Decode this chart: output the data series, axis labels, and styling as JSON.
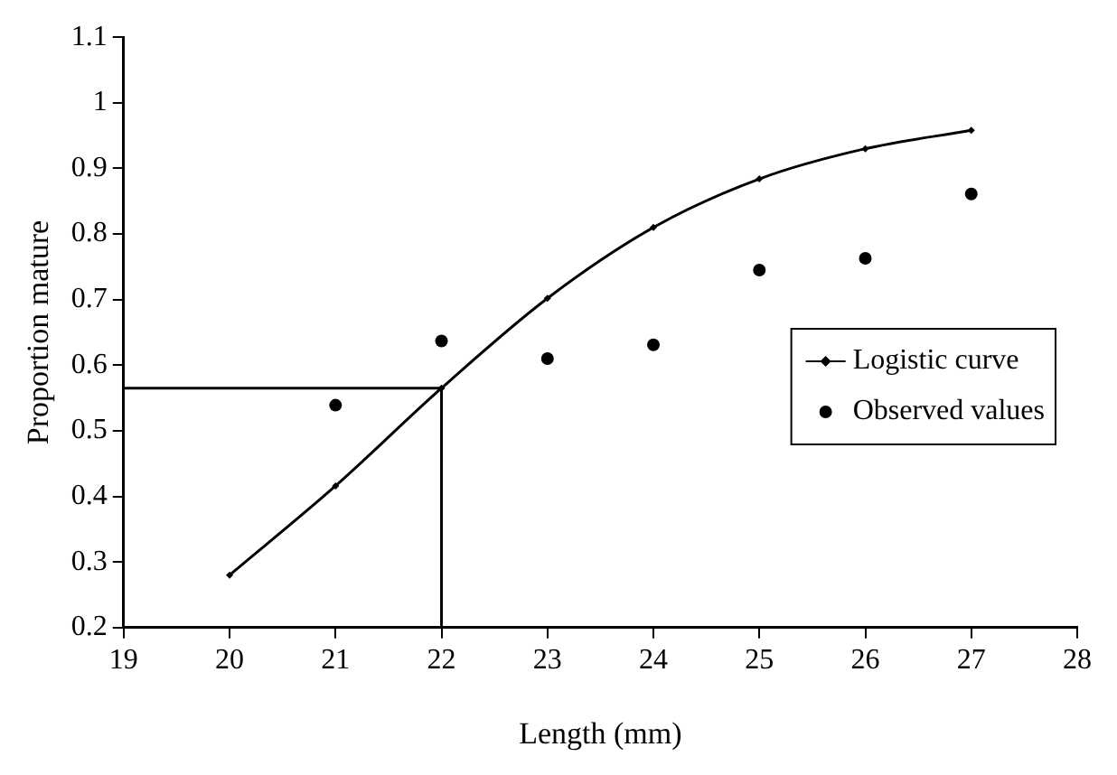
{
  "chart_data": {
    "type": "line",
    "xlabel": "Length (mm)",
    "ylabel": "Proportion mature",
    "xlim": [
      19,
      28
    ],
    "xticks": [
      19,
      20,
      21,
      22,
      23,
      24,
      25,
      26,
      27,
      28
    ],
    "ylim": [
      0.2,
      1.1
    ],
    "yticks": [
      0.2,
      0.3,
      0.4,
      0.5,
      0.6,
      0.7,
      0.8,
      0.9,
      1,
      1.1
    ],
    "grid": false,
    "legend": "right",
    "series": [
      {
        "name": "Logistic curve",
        "color": "#000000",
        "marker": "diamond",
        "x": [
          20,
          21,
          22,
          23,
          24,
          25,
          26,
          27
        ],
        "values": [
          0.28,
          0.416,
          0.565,
          0.702,
          0.81,
          0.884,
          0.93,
          0.958
        ]
      },
      {
        "name": "Observed values",
        "type": "scatter",
        "color": "#000000",
        "marker": "circle",
        "x": [
          21,
          22,
          23,
          24,
          25,
          26,
          27
        ],
        "values": [
          0.539,
          0.637,
          0.61,
          0.631,
          0.745,
          0.763,
          0.861
        ]
      },
      {
        "color": "#000000",
        "marker": "none",
        "x": [
          19,
          22,
          22
        ],
        "values": [
          0.565,
          0.565,
          0.2
        ]
      }
    ]
  }
}
